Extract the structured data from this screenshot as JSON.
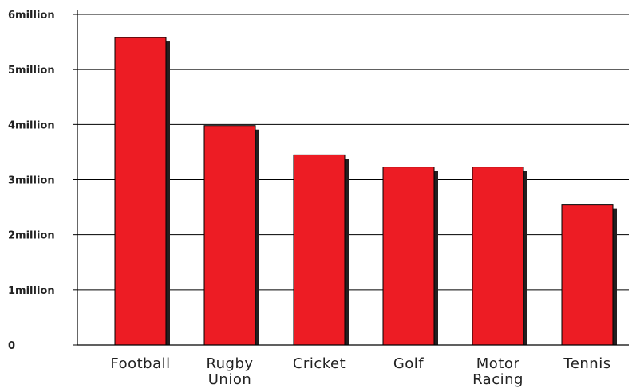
{
  "chart_data": {
    "type": "bar",
    "title": "",
    "xlabel": "",
    "ylabel": "",
    "categories": [
      "Football",
      "Rugby Union",
      "Cricket",
      "Golf",
      "Motor Racing",
      "Tennis"
    ],
    "category_label_lines": [
      [
        "Football"
      ],
      [
        "Rugby",
        "Union"
      ],
      [
        "Cricket"
      ],
      [
        "Golf"
      ],
      [
        "Motor",
        "Racing"
      ],
      [
        "Tennis"
      ]
    ],
    "values": [
      5.58,
      3.98,
      3.45,
      3.23,
      3.23,
      2.55
    ],
    "ylim": [
      0,
      6
    ],
    "y_ticks": [
      {
        "value": 0,
        "label": "0"
      },
      {
        "value": 1,
        "label": "1million"
      },
      {
        "value": 2,
        "label": "2million"
      },
      {
        "value": 3,
        "label": "3million"
      },
      {
        "value": 4,
        "label": "4million"
      },
      {
        "value": 5,
        "label": "5million"
      },
      {
        "value": 6,
        "label": "6million"
      }
    ],
    "grid": true,
    "legend": "none",
    "colors": {
      "bar": "#ed1c24",
      "bar_outline": "#000000",
      "bar_shadow": "#231f20",
      "grid": "#000000",
      "text": "#222222"
    }
  }
}
